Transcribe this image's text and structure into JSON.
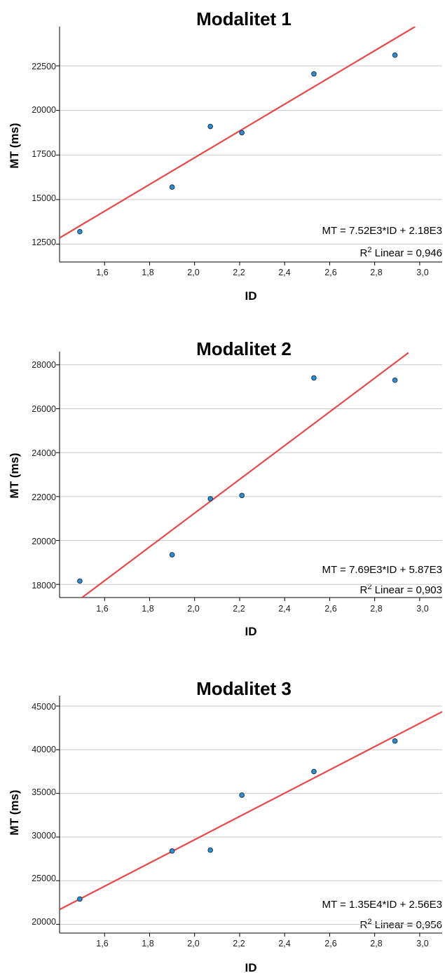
{
  "chart_data": [
    {
      "type": "scatter",
      "title": "Modalitet 1",
      "xlabel": "ID",
      "ylabel": "MT (ms)",
      "xlim": [
        1.4,
        3.1
      ],
      "ylim": [
        11500,
        24700
      ],
      "xticks": [
        "1,6",
        "1,8",
        "2,0",
        "2,2",
        "2,4",
        "2,6",
        "2,8",
        "3,0"
      ],
      "yticks": [
        "12500",
        "15000",
        "17500",
        "20000",
        "22500"
      ],
      "x": [
        1.49,
        1.9,
        2.07,
        2.21,
        2.53,
        2.89
      ],
      "y": [
        13200,
        15700,
        19100,
        18750,
        22050,
        23100
      ],
      "fit_line": {
        "x": [
          1.4,
          2.98
        ],
        "y": [
          12850,
          24700
        ]
      },
      "equation": "MT = 7.52E3*ID  + 2.18E3",
      "r2_label": "R",
      "r2_sup": "2",
      "r2_text": " Linear = 0,946",
      "grid": true
    },
    {
      "type": "scatter",
      "title": "Modalitet 2",
      "xlabel": "ID",
      "ylabel": "MT (ms)",
      "xlim": [
        1.4,
        3.1
      ],
      "ylim": [
        17400,
        28600
      ],
      "xticks": [
        "1,6",
        "1,8",
        "2,0",
        "2,2",
        "2,4",
        "2,6",
        "2,8",
        "3,0"
      ],
      "yticks": [
        "18000",
        "20000",
        "22000",
        "24000",
        "26000",
        "28000"
      ],
      "x": [
        1.49,
        1.9,
        2.07,
        2.21,
        2.53,
        2.89
      ],
      "y": [
        18150,
        19350,
        21900,
        22050,
        27400,
        27300
      ],
      "fit_line": {
        "x": [
          1.5,
          2.95
        ],
        "y": [
          17400,
          28550
        ]
      },
      "equation": "MT = 7.69E3*ID + 5.87E3",
      "r2_label": "R",
      "r2_sup": "2",
      "r2_text": " Linear = 0,903",
      "grid": true
    },
    {
      "type": "scatter",
      "title": "Modalitet 3",
      "xlabel": "ID",
      "ylabel": "MT (ms)",
      "xlim": [
        1.4,
        3.1
      ],
      "ylim": [
        19000,
        46200
      ],
      "xticks": [
        "1,6",
        "1,8",
        "2,0",
        "2,2",
        "2,4",
        "2,6",
        "2,8",
        "3,0"
      ],
      "yticks": [
        "20000",
        "25000",
        "30000",
        "35000",
        "40000",
        "45000"
      ],
      "x": [
        1.49,
        1.9,
        2.07,
        2.21,
        2.53,
        2.89
      ],
      "y": [
        22900,
        28400,
        28500,
        34800,
        37500,
        41000
      ],
      "fit_line": {
        "x": [
          1.4,
          3.1
        ],
        "y": [
          21700,
          44350
        ]
      },
      "equation": "MT = 1.35E4*ID + 2.56E3",
      "r2_label": "R",
      "r2_sup": "2",
      "r2_text": " Linear = 0,956",
      "grid": true
    }
  ]
}
